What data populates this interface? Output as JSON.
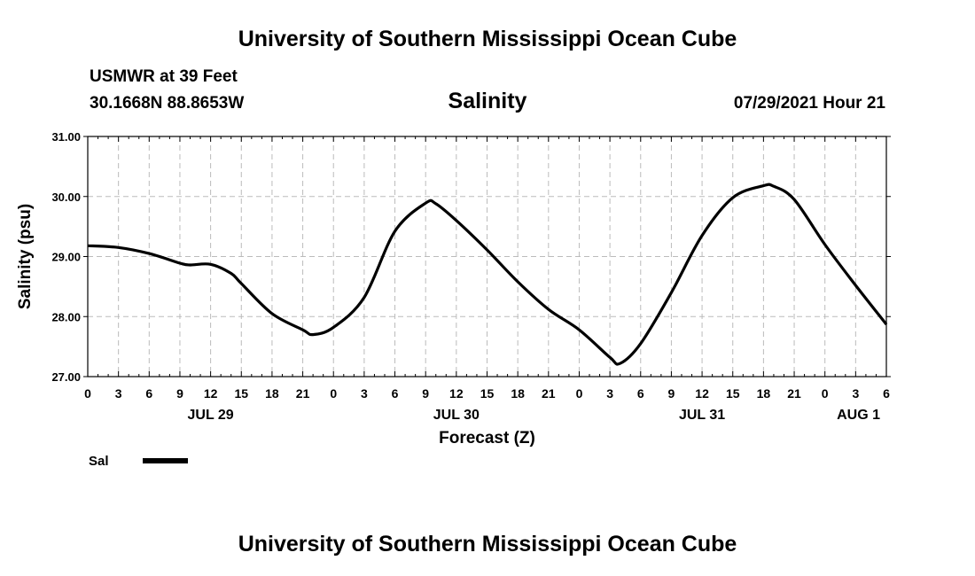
{
  "header": {
    "title": "University of Southern Mississippi Ocean Cube",
    "station": "USMWR at 39 Feet",
    "coordinates": "30.1668N  88.8653W",
    "plot_title": "Salinity",
    "timestamp": "07/29/2021 Hour 21"
  },
  "footer": {
    "title": "University of Southern Mississippi Ocean Cube"
  },
  "chart_data": {
    "type": "line",
    "title": "Salinity",
    "xlabel": "Forecast (Z)",
    "ylabel": "Salinity (psu)",
    "ylim": [
      27.0,
      31.0
    ],
    "y_ticks": [
      "27.00",
      "28.00",
      "29.00",
      "30.00",
      "31.00"
    ],
    "xlim": [
      0,
      78
    ],
    "x_tick_labels": [
      "0",
      "3",
      "6",
      "9",
      "12",
      "15",
      "18",
      "21",
      "0",
      "3",
      "6",
      "9",
      "12",
      "15",
      "18",
      "21",
      "0",
      "3",
      "6",
      "9",
      "12",
      "15",
      "18",
      "21",
      "0",
      "3",
      "6"
    ],
    "day_labels": [
      {
        "label": "JUL 29",
        "hour": 12
      },
      {
        "label": "JUL 30",
        "hour": 36
      },
      {
        "label": "JUL 31",
        "hour": 60
      },
      {
        "label": "AUG 1",
        "hour": 78
      }
    ],
    "grid": true,
    "legend": {
      "position": "bottom-left"
    },
    "series": [
      {
        "name": "Sal",
        "color": "#000000",
        "x": [
          0,
          3,
          6,
          9,
          10,
          12,
          14,
          15,
          18,
          21,
          22,
          24,
          27,
          30,
          33,
          34,
          36,
          39,
          42,
          45,
          48,
          51,
          52,
          54,
          57,
          60,
          63,
          66,
          67,
          69,
          72,
          75,
          78
        ],
        "y": [
          29.18,
          29.15,
          29.05,
          28.89,
          28.86,
          28.87,
          28.72,
          28.55,
          28.05,
          27.78,
          27.7,
          27.82,
          28.32,
          29.42,
          29.89,
          29.88,
          29.6,
          29.11,
          28.58,
          28.12,
          27.78,
          27.32,
          27.22,
          27.55,
          28.4,
          29.35,
          29.98,
          30.18,
          30.17,
          29.95,
          29.2,
          28.52,
          27.87
        ]
      }
    ]
  }
}
